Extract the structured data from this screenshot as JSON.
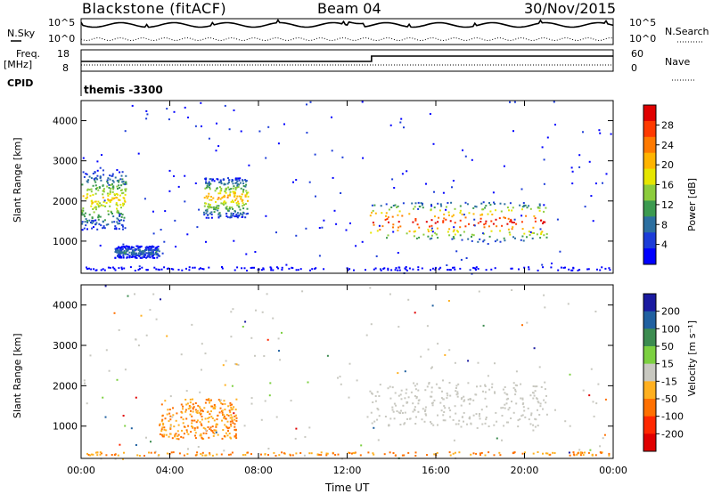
{
  "header": {
    "station": "Blackstone (fitACF)",
    "beam": "Beam 04",
    "date": "30/Nov/2015"
  },
  "top_panels": {
    "nsky_label": "N.Sky",
    "nsky_ticks": [
      "10^5",
      "10^0"
    ],
    "nsearch_label": "N.Search",
    "freq_label_line1": "Freq.",
    "freq_label_line2": "[MHz]",
    "freq_ticks": [
      "18",
      "8"
    ],
    "nave_label": "Nave",
    "nave_ticks": [
      "60",
      "0"
    ],
    "cpid_label": "CPID",
    "cpid_value": "themis -3300"
  },
  "chart_data": [
    {
      "type": "heatmap",
      "panel": "power",
      "ylabel": "Slant Range [km]",
      "xlabel": "",
      "ylim": [
        200,
        4500
      ],
      "yticks": [
        1000,
        2000,
        3000,
        4000
      ],
      "xticks": [
        "00:00",
        "04:00",
        "08:00",
        "12:00",
        "16:00",
        "20:00",
        "00:00"
      ],
      "colorbar": {
        "label": "Power [dB]",
        "ticks": [
          "28",
          "24",
          "20",
          "16",
          "12",
          "8",
          "4"
        ],
        "colors": [
          "#e00000",
          "#ff3a00",
          "#ff7a00",
          "#ffb400",
          "#e6e600",
          "#8ccc3c",
          "#3c9a50",
          "#2c6fa0",
          "#1c3cd8",
          "#0000ff"
        ]
      },
      "features": [
        {
          "t0": 0.0,
          "t1": 2.0,
          "r0": 1300,
          "r1": 2800,
          "peak": 20
        },
        {
          "t0": 1.5,
          "t1": 3.5,
          "r0": 600,
          "r1": 900,
          "peak": 10
        },
        {
          "t0": 5.5,
          "t1": 7.5,
          "r0": 1600,
          "r1": 2600,
          "peak": 22
        },
        {
          "t0": 13.0,
          "t1": 21.0,
          "r0": 1000,
          "r1": 2000,
          "peak": 30
        }
      ]
    },
    {
      "type": "heatmap",
      "panel": "velocity",
      "ylabel": "Slant Range [km]",
      "xlabel": "Time UT",
      "ylim": [
        200,
        4500
      ],
      "yticks": [
        1000,
        2000,
        3000,
        4000
      ],
      "xticks": [
        "00:00",
        "04:00",
        "08:00",
        "12:00",
        "16:00",
        "20:00",
        "00:00"
      ],
      "colorbar": {
        "label": "Velocity [m s⁻¹]",
        "ticks": [
          "200",
          "100",
          "50",
          "15",
          "-15",
          "-50",
          "-100",
          "-200"
        ],
        "colors": [
          "#1a1aa0",
          "#2060a0",
          "#3c8c50",
          "#7cd040",
          "#c8c8c0",
          "#ffb020",
          "#ff7000",
          "#ff2800",
          "#e00000"
        ]
      },
      "features": [
        {
          "t0": 3.5,
          "t1": 7.0,
          "r0": 700,
          "r1": 1700,
          "value": -80
        },
        {
          "t0": 13.0,
          "t1": 21.0,
          "r0": 1000,
          "r1": 2100,
          "value": 0
        }
      ]
    }
  ]
}
